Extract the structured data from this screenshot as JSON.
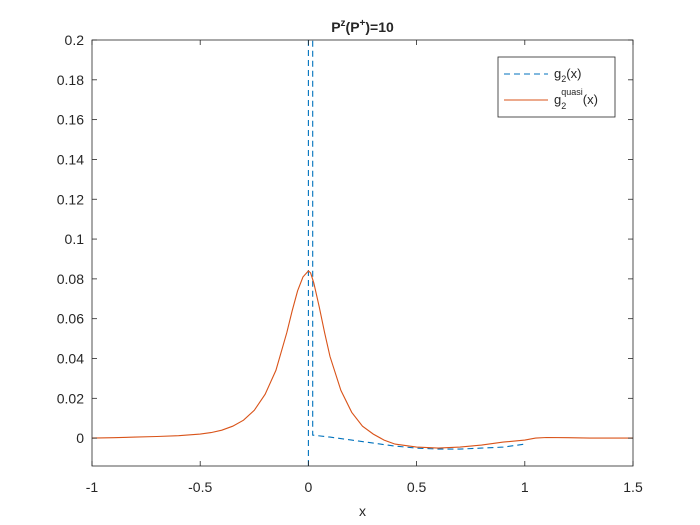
{
  "chart_data": {
    "type": "line",
    "title": "P^z(P^+)=10",
    "title_parts": {
      "base1": "P",
      "sup1": "z",
      "open": "(P",
      "sup2": "+",
      "close": ")=10"
    },
    "xlabel": "x",
    "ylabel": "",
    "xlim": [
      -1,
      1.5
    ],
    "ylim": [
      -0.014,
      0.2
    ],
    "xticks": [
      -1,
      -0.5,
      0,
      0.5,
      1,
      1.5
    ],
    "xtick_labels": [
      "-1",
      "-0.5",
      "0",
      "0.5",
      "1",
      "1.5"
    ],
    "yticks": [
      0,
      0.02,
      0.04,
      0.06,
      0.08,
      0.1,
      0.12,
      0.14,
      0.16,
      0.18,
      0.2
    ],
    "ytick_labels": [
      "0",
      "0.02",
      "0.04",
      "0.06",
      "0.08",
      "0.1",
      "0.12",
      "0.14",
      "0.16",
      "0.18",
      "0.2"
    ],
    "grid": false,
    "legend_position": "top-right",
    "series": [
      {
        "name": "g_2(x)",
        "legend": {
          "base": "g",
          "sub": "2",
          "rest": "(x)"
        },
        "color": "#0072BD",
        "dash": "dashed",
        "x": [
          0.0,
          0.0,
          0.0,
          0.02,
          0.02,
          0.1,
          0.2,
          0.3,
          0.4,
          0.5,
          0.6,
          0.7,
          0.8,
          0.9,
          1.0
        ],
        "y": [
          -0.014,
          0.25,
          0.2,
          0.2,
          0.0015,
          0.0005,
          -0.001,
          -0.0025,
          -0.004,
          -0.005,
          -0.0055,
          -0.0055,
          -0.005,
          -0.0045,
          -0.003
        ]
      },
      {
        "name": "g_2^quasi(x)",
        "legend": {
          "base": "g",
          "sub": "2",
          "sup": "quasi",
          "rest": "(x)"
        },
        "color": "#D95319",
        "dash": "solid",
        "x": [
          -1.0,
          -0.9,
          -0.8,
          -0.7,
          -0.6,
          -0.5,
          -0.45,
          -0.4,
          -0.35,
          -0.3,
          -0.25,
          -0.2,
          -0.15,
          -0.1,
          -0.075,
          -0.05,
          -0.025,
          0.0,
          0.01,
          0.025,
          0.05,
          0.075,
          0.1,
          0.15,
          0.2,
          0.25,
          0.3,
          0.35,
          0.4,
          0.5,
          0.6,
          0.7,
          0.8,
          0.9,
          1.0,
          1.05,
          1.1,
          1.2,
          1.3,
          1.4,
          1.5
        ],
        "y": [
          0.0,
          0.0002,
          0.0005,
          0.0008,
          0.0012,
          0.002,
          0.0028,
          0.004,
          0.006,
          0.009,
          0.014,
          0.022,
          0.034,
          0.053,
          0.064,
          0.074,
          0.081,
          0.084,
          0.083,
          0.078,
          0.066,
          0.053,
          0.041,
          0.024,
          0.013,
          0.006,
          0.002,
          -0.001,
          -0.003,
          -0.0045,
          -0.005,
          -0.0045,
          -0.0035,
          -0.002,
          -0.001,
          0.0,
          0.0003,
          0.0002,
          0.0,
          0.0,
          0.0
        ]
      }
    ]
  }
}
